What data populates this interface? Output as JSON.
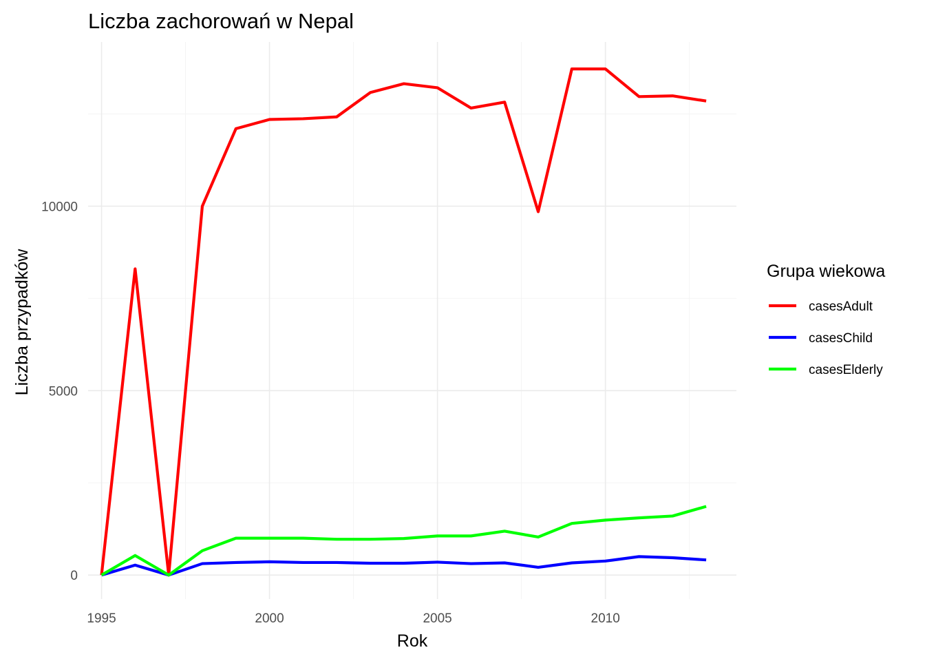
{
  "chart_data": {
    "type": "line",
    "title": "Liczba zachorowań w Nepal",
    "xlabel": "Rok",
    "ylabel": "Liczba przypadków",
    "x": [
      1995,
      1996,
      1997,
      1998,
      1999,
      2000,
      2001,
      2002,
      2003,
      2004,
      2005,
      2006,
      2007,
      2008,
      2009,
      2010,
      2011,
      2012,
      2013
    ],
    "xlim": [
      1994.6,
      2013.9
    ],
    "ylim": [
      -650,
      14450
    ],
    "x_ticks": [
      1995,
      2000,
      2005,
      2010
    ],
    "x_tick_labels": [
      "1995",
      "2000",
      "2005",
      "2010"
    ],
    "y_ticks": [
      0,
      5000,
      10000
    ],
    "y_tick_labels": [
      "0",
      "5000",
      "10000"
    ],
    "grid": true,
    "legend": {
      "title": "Grupa wiekowa",
      "position": "right"
    },
    "series": [
      {
        "name": "casesAdult",
        "color": "#ff0000",
        "values": [
          0,
          8300,
          0,
          10000,
          12100,
          12350,
          12370,
          12420,
          13080,
          13320,
          13210,
          12660,
          12820,
          9850,
          13720,
          13720,
          12970,
          12990,
          12850
        ]
      },
      {
        "name": "casesChild",
        "color": "#0000ff",
        "values": [
          0,
          270,
          0,
          310,
          340,
          360,
          340,
          340,
          320,
          320,
          350,
          310,
          330,
          210,
          330,
          380,
          500,
          470,
          410
        ]
      },
      {
        "name": "casesElderly",
        "color": "#00ff00",
        "values": [
          0,
          530,
          0,
          660,
          1000,
          1000,
          1000,
          970,
          970,
          990,
          1060,
          1060,
          1190,
          1030,
          1400,
          1490,
          1550,
          1600,
          1860
        ]
      }
    ]
  }
}
